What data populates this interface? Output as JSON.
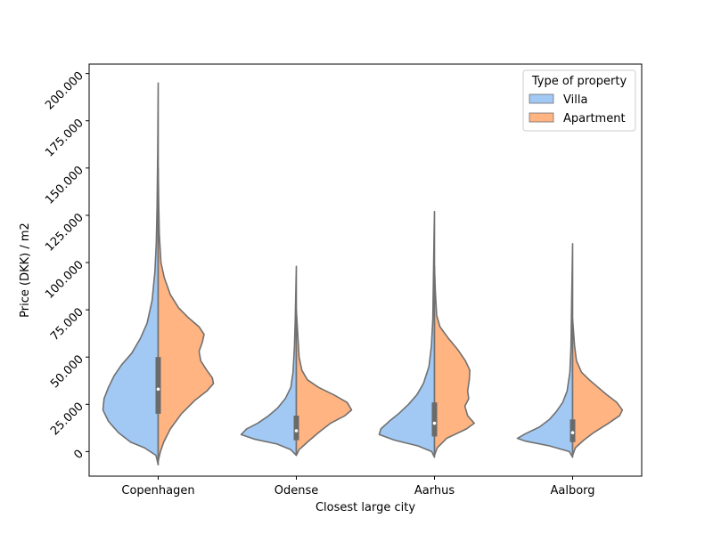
{
  "chart_data": {
    "type": "violin",
    "split": true,
    "xlabel": "Closest large city",
    "ylabel": "Price (DKK) / m2",
    "ylim": [
      -13000,
      205000
    ],
    "yticks": [
      0,
      25000,
      50000,
      75000,
      100000,
      125000,
      150000,
      175000,
      200000
    ],
    "ytick_labels": [
      "0",
      "25.000",
      "50.000",
      "75.000",
      "100.000",
      "125.000",
      "150.000",
      "175.000",
      "200.000"
    ],
    "categories": [
      "Copenhagen",
      "Odense",
      "Aarhus",
      "Aalborg"
    ],
    "legend": {
      "title": "Type of property",
      "position": "top-right",
      "entries": [
        {
          "name": "Villa",
          "color": "#a1c9f4"
        },
        {
          "name": "Apartment",
          "color": "#ffb482"
        }
      ]
    },
    "edge_color": "#707070",
    "box_color": "#6a6a6a",
    "series": [
      {
        "name": "Villa",
        "color": "#a1c9f4",
        "violins": [
          {
            "category": "Copenhagen",
            "range": [
              -7000,
              195000
            ],
            "profile": [
              [
                -7000,
                0
              ],
              [
                -2000,
                0.04
              ],
              [
                2000,
                0.25
              ],
              [
                5000,
                0.5
              ],
              [
                10000,
                0.72
              ],
              [
                16000,
                0.9
              ],
              [
                22000,
                1.0
              ],
              [
                28000,
                0.98
              ],
              [
                34000,
                0.9
              ],
              [
                40000,
                0.8
              ],
              [
                46000,
                0.66
              ],
              [
                52000,
                0.48
              ],
              [
                60000,
                0.32
              ],
              [
                68000,
                0.2
              ],
              [
                80000,
                0.11
              ],
              [
                95000,
                0.06
              ],
              [
                110000,
                0.035
              ],
              [
                130000,
                0.02
              ],
              [
                160000,
                0.008
              ],
              [
                195000,
                0
              ]
            ]
          },
          {
            "category": "Odense",
            "range": [
              -2000,
              98000
            ],
            "profile": [
              [
                -2000,
                0
              ],
              [
                1000,
                0.1
              ],
              [
                4000,
                0.35
              ],
              [
                6500,
                0.75
              ],
              [
                9000,
                1.0
              ],
              [
                12000,
                0.9
              ],
              [
                15000,
                0.7
              ],
              [
                19000,
                0.5
              ],
              [
                23000,
                0.34
              ],
              [
                28000,
                0.2
              ],
              [
                34000,
                0.1
              ],
              [
                42000,
                0.06
              ],
              [
                55000,
                0.035
              ],
              [
                70000,
                0.02
              ],
              [
                98000,
                0
              ]
            ]
          },
          {
            "category": "Aarhus",
            "range": [
              -3000,
              127000
            ],
            "profile": [
              [
                -3000,
                0
              ],
              [
                0,
                0.05
              ],
              [
                3000,
                0.3
              ],
              [
                6000,
                0.72
              ],
              [
                9000,
                1.0
              ],
              [
                12000,
                0.97
              ],
              [
                16000,
                0.82
              ],
              [
                20000,
                0.65
              ],
              [
                25000,
                0.47
              ],
              [
                30000,
                0.32
              ],
              [
                36000,
                0.2
              ],
              [
                45000,
                0.1
              ],
              [
                56000,
                0.055
              ],
              [
                70000,
                0.03
              ],
              [
                90000,
                0.02
              ],
              [
                110000,
                0.01
              ],
              [
                127000,
                0
              ]
            ]
          },
          {
            "category": "Aalborg",
            "range": [
              -3000,
              110000
            ],
            "profile": [
              [
                -3000,
                0
              ],
              [
                0,
                0.06
              ],
              [
                3000,
                0.42
              ],
              [
                5500,
                0.85
              ],
              [
                7000,
                1.0
              ],
              [
                9500,
                0.85
              ],
              [
                13000,
                0.6
              ],
              [
                17000,
                0.42
              ],
              [
                21000,
                0.3
              ],
              [
                26000,
                0.18
              ],
              [
                32000,
                0.1
              ],
              [
                42000,
                0.05
              ],
              [
                55000,
                0.03
              ],
              [
                75000,
                0.02
              ],
              [
                110000,
                0
              ]
            ]
          }
        ]
      },
      {
        "name": "Apartment",
        "color": "#ffb482",
        "violins": [
          {
            "category": "Copenhagen",
            "range": [
              -5000,
              150000
            ],
            "profile": [
              [
                -5000,
                0
              ],
              [
                0,
                0.04
              ],
              [
                5000,
                0.1
              ],
              [
                12000,
                0.22
              ],
              [
                20000,
                0.42
              ],
              [
                27000,
                0.66
              ],
              [
                32000,
                0.88
              ],
              [
                36000,
                1.0
              ],
              [
                39000,
                0.98
              ],
              [
                43000,
                0.88
              ],
              [
                48000,
                0.77
              ],
              [
                53000,
                0.74
              ],
              [
                58000,
                0.8
              ],
              [
                62000,
                0.83
              ],
              [
                66000,
                0.74
              ],
              [
                71000,
                0.54
              ],
              [
                76000,
                0.37
              ],
              [
                83000,
                0.22
              ],
              [
                92000,
                0.11
              ],
              [
                100000,
                0.05
              ],
              [
                115000,
                0.02
              ],
              [
                130000,
                0.01
              ],
              [
                150000,
                0
              ]
            ]
          },
          {
            "category": "Odense",
            "range": [
              -2000,
              75000
            ],
            "profile": [
              [
                -2000,
                0
              ],
              [
                1000,
                0.05
              ],
              [
                5000,
                0.2
              ],
              [
                10000,
                0.4
              ],
              [
                15000,
                0.62
              ],
              [
                19000,
                0.88
              ],
              [
                22000,
                1.0
              ],
              [
                26000,
                0.92
              ],
              [
                30000,
                0.68
              ],
              [
                34000,
                0.4
              ],
              [
                38000,
                0.2
              ],
              [
                43000,
                0.1
              ],
              [
                50000,
                0.05
              ],
              [
                60000,
                0.03
              ],
              [
                75000,
                0
              ]
            ]
          },
          {
            "category": "Aarhus",
            "range": [
              -2000,
              98000
            ],
            "profile": [
              [
                -2000,
                0
              ],
              [
                2000,
                0.05
              ],
              [
                7000,
                0.22
              ],
              [
                12000,
                0.58
              ],
              [
                15000,
                0.72
              ],
              [
                19000,
                0.6
              ],
              [
                24000,
                0.55
              ],
              [
                28000,
                0.62
              ],
              [
                32000,
                0.6
              ],
              [
                38000,
                0.63
              ],
              [
                43000,
                0.64
              ],
              [
                48000,
                0.56
              ],
              [
                54000,
                0.42
              ],
              [
                60000,
                0.25
              ],
              [
                66000,
                0.1
              ],
              [
                72000,
                0.04
              ],
              [
                85000,
                0.015
              ],
              [
                98000,
                0
              ]
            ]
          },
          {
            "category": "Aalborg",
            "range": [
              -2000,
              70000
            ],
            "profile": [
              [
                -2000,
                0
              ],
              [
                2000,
                0.05
              ],
              [
                6000,
                0.2
              ],
              [
                10000,
                0.38
              ],
              [
                15000,
                0.65
              ],
              [
                19000,
                0.85
              ],
              [
                22000,
                0.9
              ],
              [
                26000,
                0.8
              ],
              [
                30000,
                0.62
              ],
              [
                34000,
                0.46
              ],
              [
                38000,
                0.3
              ],
              [
                42000,
                0.16
              ],
              [
                48000,
                0.07
              ],
              [
                56000,
                0.035
              ],
              [
                70000,
                0
              ]
            ]
          }
        ]
      }
    ],
    "box_stats": [
      {
        "category": "Copenhagen",
        "q1": 20000,
        "median": 33000,
        "q3": 50000
      },
      {
        "category": "Odense",
        "q1": 6000,
        "median": 11000,
        "q3": 19000
      },
      {
        "category": "Aarhus",
        "q1": 8000,
        "median": 15000,
        "q3": 26000
      },
      {
        "category": "Aalborg",
        "q1": 5000,
        "median": 10000,
        "q3": 17000
      }
    ]
  }
}
